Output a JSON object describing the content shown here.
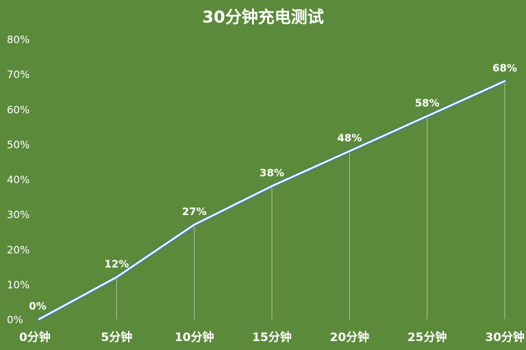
{
  "chart_data": {
    "type": "line",
    "title": "30分钟充电测试",
    "categories": [
      "0分钟",
      "5分钟",
      "10分钟",
      "15分钟",
      "20分钟",
      "25分钟",
      "30分钟"
    ],
    "values": [
      0,
      12,
      27,
      38,
      48,
      58,
      68
    ],
    "data_labels": [
      "0%",
      "12%",
      "27%",
      "38%",
      "48%",
      "58%",
      "68%"
    ],
    "y_ticks": [
      "0%",
      "10%",
      "20%",
      "30%",
      "40%",
      "50%",
      "60%",
      "70%",
      "80%"
    ],
    "ylim": [
      0,
      80
    ],
    "grid": false,
    "drop_lines": true,
    "colors": {
      "background": "#5a8a3a",
      "line": "#ffffff",
      "line_shadow": "#3f7fb8",
      "text": "#ffffff"
    }
  }
}
